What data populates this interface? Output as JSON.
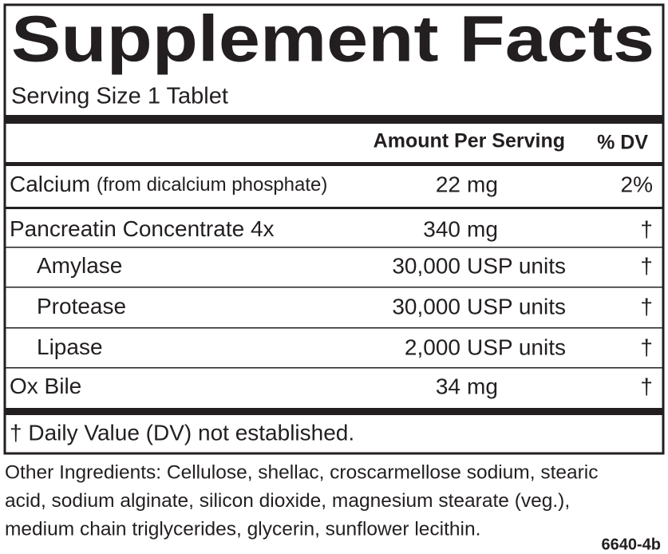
{
  "title": "Supplement Facts",
  "serving_size": "Serving Size 1 Tablet",
  "header": {
    "amount": "Amount Per Serving",
    "dv": "% DV"
  },
  "rows": [
    {
      "name": "Calcium",
      "note": "(from dicalcium phosphate)",
      "amount": "22",
      "unit": "mg",
      "dv": "2%"
    },
    {
      "name": "Pancreatin Concentrate 4x",
      "amount": "340",
      "unit": "mg",
      "dv": "†"
    },
    {
      "name": "Amylase",
      "amount": "30,000",
      "unit": "USP units",
      "dv": "†"
    },
    {
      "name": "Protease",
      "amount": "30,000",
      "unit": "USP units",
      "dv": "†"
    },
    {
      "name": "Lipase",
      "amount": "2,000",
      "unit": "USP units",
      "dv": "†"
    },
    {
      "name": "Ox Bile",
      "amount": "34",
      "unit": "mg",
      "dv": "†"
    }
  ],
  "footnote": "† Daily Value (DV) not established.",
  "other_ingredients": [
    "Other Ingredients: Cellulose, shellac, croscarmellose sodium, stearic",
    "acid, sodium alginate, silicon dioxide, magnesium stearate (veg.),",
    "medium chain triglycerides, glycerin, sunflower lecithin."
  ],
  "code": "6640-4b"
}
